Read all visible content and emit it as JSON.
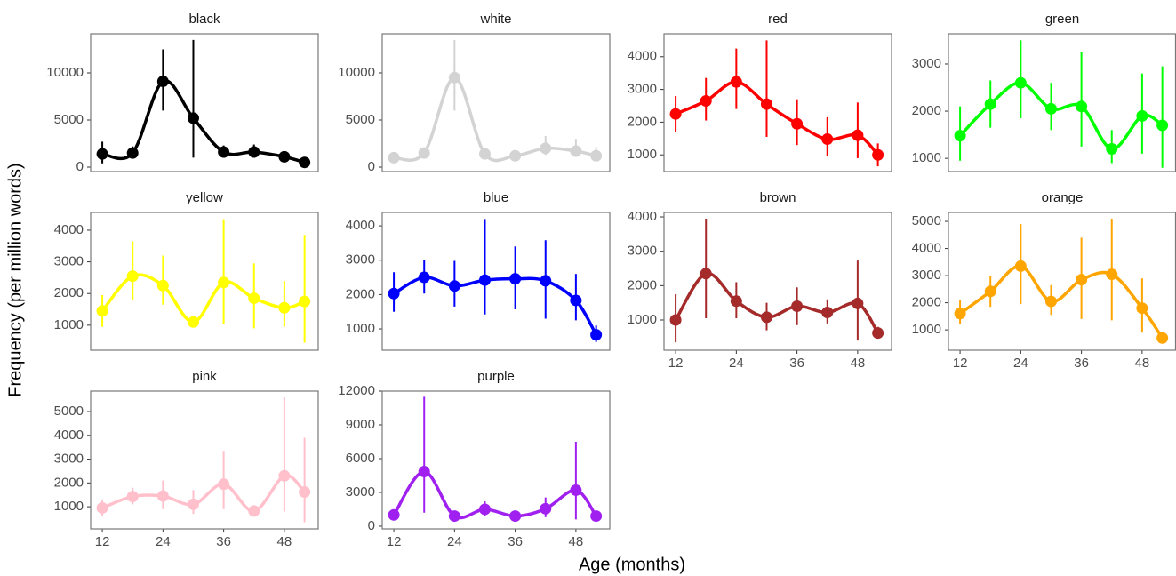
{
  "x_label": "Age (months)",
  "y_label": "Frequency (per million words)",
  "chart_data": [
    {
      "type": "line",
      "title": "black",
      "color": "#000000",
      "x": [
        12,
        18,
        24,
        30,
        36,
        42,
        48,
        52
      ],
      "values": [
        1400,
        1500,
        9100,
        5200,
        1600,
        1600,
        1100,
        500
      ],
      "lower": [
        400,
        1200,
        6000,
        1000,
        1000,
        1000,
        900,
        250
      ],
      "upper": [
        2700,
        2200,
        12500,
        13500,
        2300,
        2400,
        1300,
        800
      ],
      "xlim": [
        9.7,
        54.7
      ],
      "ylim": [
        -470,
        14150
      ],
      "yticks": [
        0,
        5000,
        10000
      ]
    },
    {
      "type": "line",
      "title": "white",
      "color": "#d3d3d3",
      "x": [
        12,
        18,
        24,
        30,
        36,
        42,
        48,
        52
      ],
      "values": [
        1000,
        1500,
        9500,
        1400,
        1200,
        2000,
        1700,
        1200
      ],
      "lower": [
        800,
        1100,
        6000,
        1000,
        900,
        1300,
        1100,
        800
      ],
      "upper": [
        1200,
        2000,
        13500,
        1800,
        1600,
        3300,
        3000,
        2100
      ],
      "xlim": [
        9.7,
        54.7
      ],
      "ylim": [
        -470,
        14150
      ],
      "yticks": [
        0,
        5000,
        10000
      ]
    },
    {
      "type": "line",
      "title": "red",
      "color": "#ff0000",
      "x": [
        12,
        18,
        24,
        30,
        36,
        42,
        48,
        52
      ],
      "values": [
        2250,
        2650,
        3230,
        2550,
        1950,
        1480,
        1600,
        1000
      ],
      "lower": [
        1700,
        2050,
        2400,
        1550,
        1300,
        950,
        900,
        650
      ],
      "upper": [
        2800,
        3350,
        4250,
        4500,
        2700,
        2150,
        2600,
        1350
      ],
      "xlim": [
        9.7,
        54.7
      ],
      "ylim": [
        490,
        4700
      ],
      "yticks": [
        1000,
        2000,
        3000,
        4000
      ]
    },
    {
      "type": "line",
      "title": "green",
      "color": "#00ff00",
      "x": [
        12,
        18,
        24,
        30,
        36,
        42,
        48,
        52
      ],
      "values": [
        1480,
        2150,
        2600,
        2050,
        2100,
        1200,
        1900,
        1700
      ],
      "lower": [
        950,
        1650,
        1850,
        1600,
        1250,
        900,
        1100,
        800
      ],
      "upper": [
        2100,
        2650,
        3500,
        2600,
        3250,
        1600,
        2800,
        2950
      ],
      "xlim": [
        9.7,
        54.7
      ],
      "ylim": [
        720,
        3640
      ],
      "yticks": [
        1000,
        2000,
        3000
      ]
    },
    {
      "type": "line",
      "title": "yellow",
      "color": "#ffff00",
      "x": [
        12,
        18,
        24,
        30,
        36,
        42,
        48,
        52
      ],
      "values": [
        1450,
        2550,
        2250,
        1100,
        2350,
        1850,
        1550,
        1750
      ],
      "lower": [
        950,
        1800,
        1650,
        1000,
        1050,
        900,
        950,
        450
      ],
      "upper": [
        1950,
        3650,
        3200,
        1250,
        4350,
        2950,
        2400,
        3850
      ],
      "xlim": [
        9.7,
        54.7
      ],
      "ylim": [
        210,
        4560
      ],
      "yticks": [
        1000,
        2000,
        3000,
        4000
      ]
    },
    {
      "type": "line",
      "title": "blue",
      "color": "#0000ff",
      "x": [
        12,
        18,
        24,
        30,
        36,
        42,
        48,
        52
      ],
      "values": [
        2030,
        2500,
        2250,
        2420,
        2460,
        2400,
        1830,
        830
      ],
      "lower": [
        1500,
        2030,
        1650,
        1420,
        1570,
        1300,
        1250,
        620
      ],
      "upper": [
        2650,
        3000,
        2980,
        4200,
        3400,
        3580,
        2600,
        1100
      ],
      "xlim": [
        9.7,
        54.7
      ],
      "ylim": [
        380,
        4390
      ],
      "yticks": [
        1000,
        2000,
        3000,
        4000
      ]
    },
    {
      "type": "line",
      "title": "brown",
      "color": "#a52a2a",
      "x": [
        12,
        18,
        24,
        30,
        36,
        42,
        48,
        52
      ],
      "values": [
        1000,
        2350,
        1550,
        1080,
        1400,
        1220,
        1480,
        620
      ],
      "lower": [
        350,
        1050,
        1050,
        700,
        850,
        900,
        400,
        500
      ],
      "upper": [
        1750,
        3950,
        2100,
        1500,
        1950,
        1600,
        2730,
        800
      ],
      "xlim": [
        9.7,
        54.7
      ],
      "ylim": [
        120,
        4130
      ],
      "yticks": [
        1000,
        2000,
        3000,
        4000
      ],
      "xticks": [
        12,
        24,
        36,
        48
      ]
    },
    {
      "type": "line",
      "title": "orange",
      "color": "#ffa500",
      "x": [
        12,
        18,
        24,
        30,
        36,
        42,
        48,
        52
      ],
      "values": [
        1600,
        2420,
        3350,
        2050,
        2850,
        3050,
        1800,
        700
      ],
      "lower": [
        1200,
        1850,
        1950,
        1550,
        1400,
        1350,
        900,
        600
      ],
      "upper": [
        2100,
        3000,
        4900,
        2650,
        4400,
        5100,
        2900,
        800
      ],
      "xlim": [
        9.7,
        54.7
      ],
      "ylim": [
        250,
        5330
      ],
      "yticks": [
        1000,
        2000,
        3000,
        4000,
        5000
      ],
      "xticks": [
        12,
        24,
        36,
        48
      ]
    },
    {
      "type": "line",
      "title": "pink",
      "color": "#ffc0cb",
      "x": [
        12,
        18,
        24,
        30,
        36,
        42,
        48,
        52
      ],
      "values": [
        950,
        1430,
        1450,
        1100,
        1950,
        820,
        2300,
        1620
      ],
      "lower": [
        600,
        1100,
        900,
        700,
        900,
        650,
        800,
        350
      ],
      "upper": [
        1300,
        1800,
        2100,
        1700,
        3350,
        1000,
        5600,
        3900
      ],
      "xlim": [
        9.7,
        54.7
      ],
      "ylim": [
        70,
        5860
      ],
      "yticks": [
        1000,
        2000,
        3000,
        4000,
        5000
      ],
      "xticks": [
        12,
        24,
        36,
        48
      ]
    },
    {
      "type": "line",
      "title": "purple",
      "color": "#a020f0",
      "x": [
        12,
        18,
        24,
        30,
        36,
        42,
        48,
        52
      ],
      "values": [
        1000,
        4850,
        900,
        1500,
        900,
        1550,
        3200,
        900
      ],
      "lower": [
        700,
        1200,
        700,
        900,
        700,
        800,
        600,
        700
      ],
      "upper": [
        1300,
        11500,
        1100,
        2200,
        1100,
        2550,
        7500,
        1100
      ],
      "xlim": [
        9.7,
        54.7
      ],
      "ylim": [
        -240,
        12000
      ],
      "yticks": [
        0,
        3000,
        6000,
        9000,
        12000
      ],
      "xticks": [
        12,
        24,
        36,
        48
      ]
    }
  ]
}
